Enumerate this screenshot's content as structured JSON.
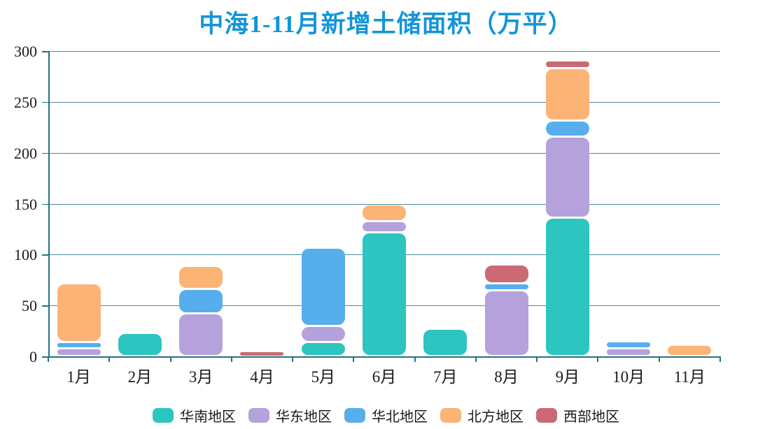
{
  "chart_data": {
    "type": "bar",
    "stacked": true,
    "title": "中海1-11月新增土储面积（万平）",
    "categories": [
      "1月",
      "2月",
      "3月",
      "4月",
      "5月",
      "6月",
      "7月",
      "8月",
      "9月",
      "10月",
      "11月"
    ],
    "series": [
      {
        "name": "华南地区",
        "color": "#2cc5bf",
        "values": [
          0,
          23,
          0,
          0,
          14,
          122,
          27,
          0,
          136,
          0,
          0
        ]
      },
      {
        "name": "华东地区",
        "color": "#b5a1dc",
        "values": [
          8,
          0,
          42,
          0,
          16,
          11,
          0,
          65,
          80,
          8,
          0
        ]
      },
      {
        "name": "华北地区",
        "color": "#57aeec",
        "values": [
          6,
          0,
          24,
          0,
          77,
          0,
          0,
          7,
          16,
          7,
          0
        ]
      },
      {
        "name": "北方地区",
        "color": "#fcb376",
        "values": [
          58,
          0,
          23,
          0,
          0,
          16,
          0,
          0,
          51,
          0,
          11
        ]
      },
      {
        "name": "西部地区",
        "color": "#cb6a72",
        "values": [
          0,
          0,
          0,
          4,
          0,
          0,
          0,
          18,
          8,
          0,
          0
        ]
      }
    ],
    "y_ticks": [
      0,
      50,
      100,
      150,
      200,
      250,
      300
    ],
    "ylim": [
      0,
      300
    ],
    "grid": true,
    "legend_position": "bottom"
  },
  "colors": {
    "title": "#1295d8",
    "axis": "#26717e",
    "grid": "#4a8c9c",
    "text": "#1a1a1a"
  }
}
